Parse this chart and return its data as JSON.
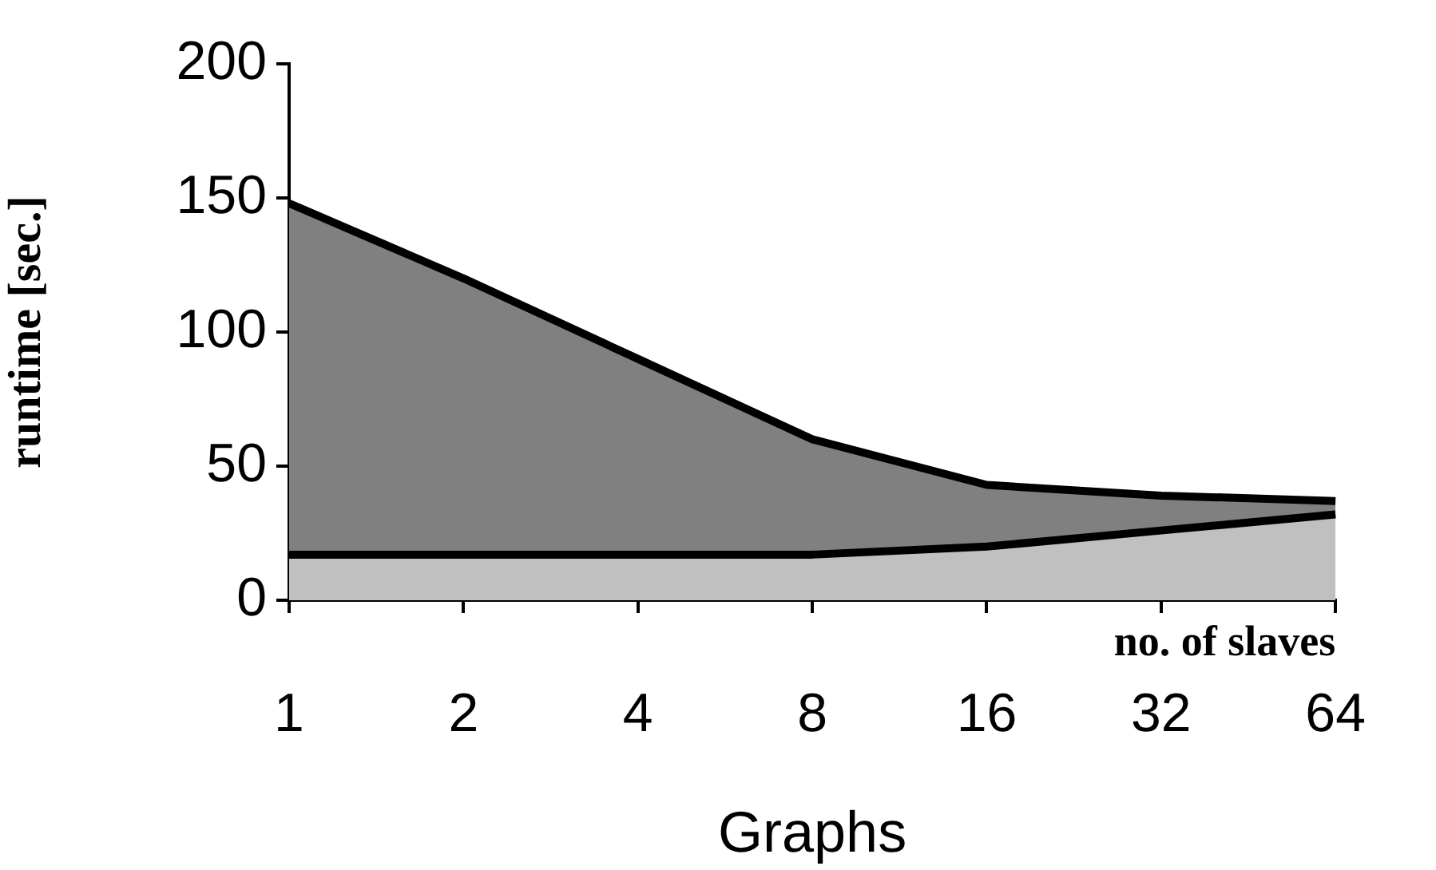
{
  "chart_data": {
    "type": "area",
    "xlabel": "Graphs",
    "ylabel": "runtime [sec.]",
    "annotations": [
      "no. of slaves"
    ],
    "categories": [
      "1",
      "2",
      "4",
      "8",
      "16",
      "32",
      "64"
    ],
    "series": [
      {
        "color": "#808080",
        "values": [
          148,
          120,
          90,
          60,
          43,
          39,
          37
        ]
      },
      {
        "color": "#c0c0c0",
        "values": [
          17,
          17,
          17,
          17,
          20,
          26,
          32
        ]
      }
    ],
    "ylim": [
      0,
      200
    ],
    "yticks": [
      0,
      50,
      100,
      150,
      200
    ],
    "grid": false,
    "legend": false
  }
}
